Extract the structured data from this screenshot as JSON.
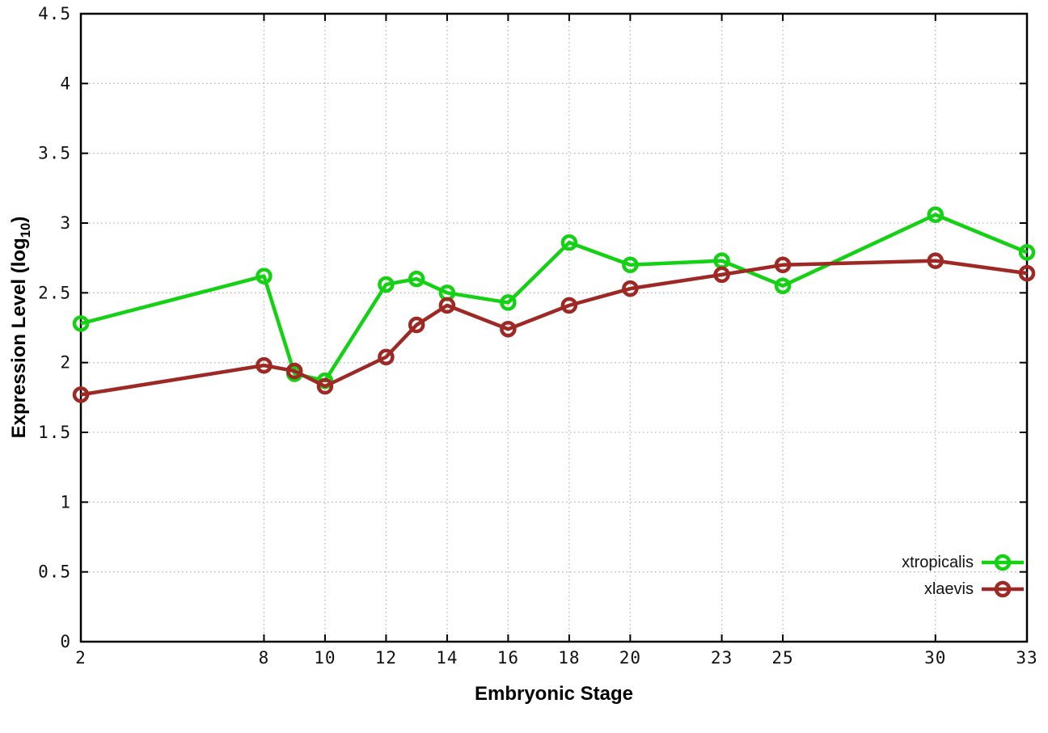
{
  "chart_data": {
    "type": "line",
    "title": "",
    "xlabel": "Embryonic Stage",
    "ylabel": "Expression Level (log10)",
    "ylabel_parts": {
      "main": "Expression Level (log",
      "sub": "10",
      "suffix": ")"
    },
    "x": [
      2,
      8,
      9,
      10,
      12,
      13,
      14,
      16,
      18,
      20,
      23,
      25,
      30,
      33
    ],
    "series": [
      {
        "name": "xtropicalis",
        "color": "#14d114",
        "values": [
          2.28,
          2.62,
          1.92,
          1.87,
          2.56,
          2.6,
          2.5,
          2.43,
          2.86,
          2.7,
          2.73,
          2.55,
          3.06,
          2.79
        ]
      },
      {
        "name": "xlaevis",
        "color": "#9e2823",
        "values": [
          1.77,
          1.98,
          1.94,
          1.83,
          2.04,
          2.27,
          2.41,
          2.24,
          2.41,
          2.53,
          2.63,
          2.7,
          2.73,
          2.64
        ]
      }
    ],
    "x_ticks": [
      2,
      8,
      10,
      12,
      14,
      16,
      18,
      20,
      23,
      25,
      30,
      33
    ],
    "y_ticks": [
      0,
      0.5,
      1,
      1.5,
      2,
      2.5,
      3,
      3.5,
      4,
      4.5
    ],
    "xlim": [
      2,
      33
    ],
    "ylim": [
      0,
      4.5
    ],
    "grid": true,
    "legend_position": "bottom-right",
    "colors": {
      "axis": "#000000",
      "grid": "#b6b6be",
      "background": "#ffffff"
    }
  }
}
